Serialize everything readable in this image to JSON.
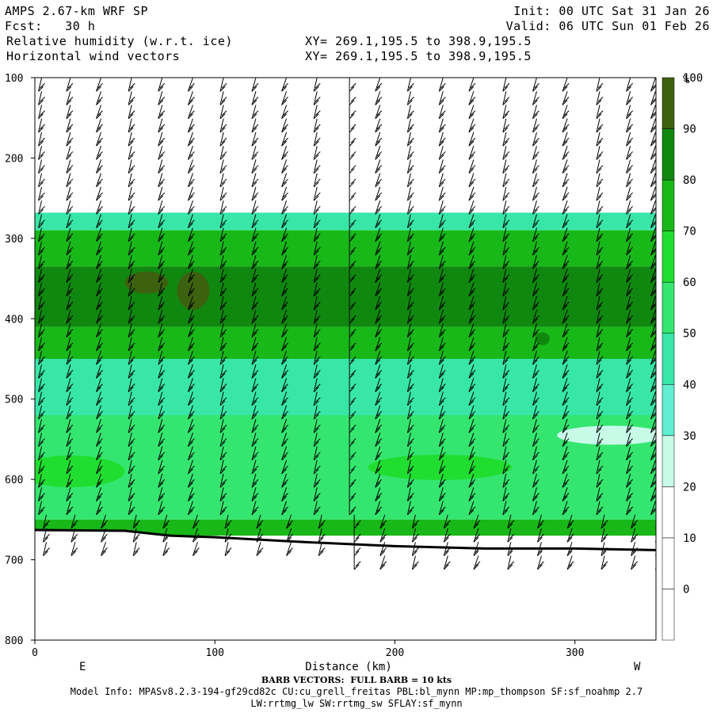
{
  "header": {
    "model": "AMPS 2.67-km WRF SP",
    "init": "Init: 00 UTC Sat 31 Jan 26",
    "fcst": "Fcst:   30 h",
    "valid": "Valid: 06 UTC Sun 01 Feb 26",
    "field1": "Relative humidity (w.r.t. ice)",
    "field1_xy": "XY= 269.1,195.5 to 398.9,195.5",
    "field2": "Horizontal wind vectors",
    "field2_xy": "XY= 269.1,195.5 to 398.9,195.5"
  },
  "chart_data": {
    "type": "heatmap",
    "xlabel": "Distance (km)",
    "ylabel": "",
    "x_ticks": [
      0,
      100,
      200,
      300
    ],
    "y_ticks": [
      100,
      200,
      300,
      400,
      500,
      600,
      700,
      800
    ],
    "xlim": [
      0,
      345
    ],
    "ylim": [
      100,
      800
    ],
    "x_end_labels": {
      "left": "E",
      "right": "W"
    },
    "colorbar": {
      "unit": "%",
      "levels": [
        0,
        10,
        20,
        30,
        40,
        50,
        60,
        70,
        80,
        90,
        100
      ],
      "colors": [
        "#ffffff",
        "#ffffff",
        "#ffffff",
        "#c8fae8",
        "#60efd0",
        "#38e6a8",
        "#34e670",
        "#20de30",
        "#18b818",
        "#108810",
        "#3c6210"
      ]
    },
    "layers": [
      {
        "p_top": 100,
        "p_bottom": 268,
        "rh": 0
      },
      {
        "p_top": 268,
        "p_bottom": 290,
        "rh": 55
      },
      {
        "p_top": 290,
        "p_bottom": 335,
        "rh": 88
      },
      {
        "p_top": 335,
        "p_bottom": 410,
        "rh": 95
      },
      {
        "p_top": 410,
        "p_bottom": 450,
        "rh": 85
      },
      {
        "p_top": 450,
        "p_bottom": 520,
        "rh": 50
      },
      {
        "p_top": 520,
        "p_bottom": 650,
        "rh": 62
      },
      {
        "p_top": 650,
        "p_bottom": 670,
        "rh": 80
      }
    ],
    "terrain_pressure": [
      {
        "x": 0,
        "p": 663
      },
      {
        "x": 50,
        "p": 664
      },
      {
        "x": 75,
        "p": 670
      },
      {
        "x": 100,
        "p": 672
      },
      {
        "x": 150,
        "p": 678
      },
      {
        "x": 200,
        "p": 683
      },
      {
        "x": 250,
        "p": 686
      },
      {
        "x": 300,
        "p": 686
      },
      {
        "x": 345,
        "p": 688
      }
    ],
    "barb_x": [
      2,
      18,
      35,
      52,
      69,
      86,
      103,
      121,
      138,
      155,
      173,
      190,
      207,
      225,
      242,
      260,
      277,
      294,
      312,
      329,
      343
    ],
    "barb_footer": "BARB VECTORS:  FULL BARB = 10 kts"
  },
  "footer": {
    "model_info": "Model Info: MPASv8.2.3-194-gf29cd82c CU:cu_grell_freitas PBL:bl_mynn MP:mp_thompson SF:sf_noahmp 2.7",
    "model_info2": "LW:rrtmg_lw SW:rrtmg_sw SFLAY:sf_mynn"
  }
}
